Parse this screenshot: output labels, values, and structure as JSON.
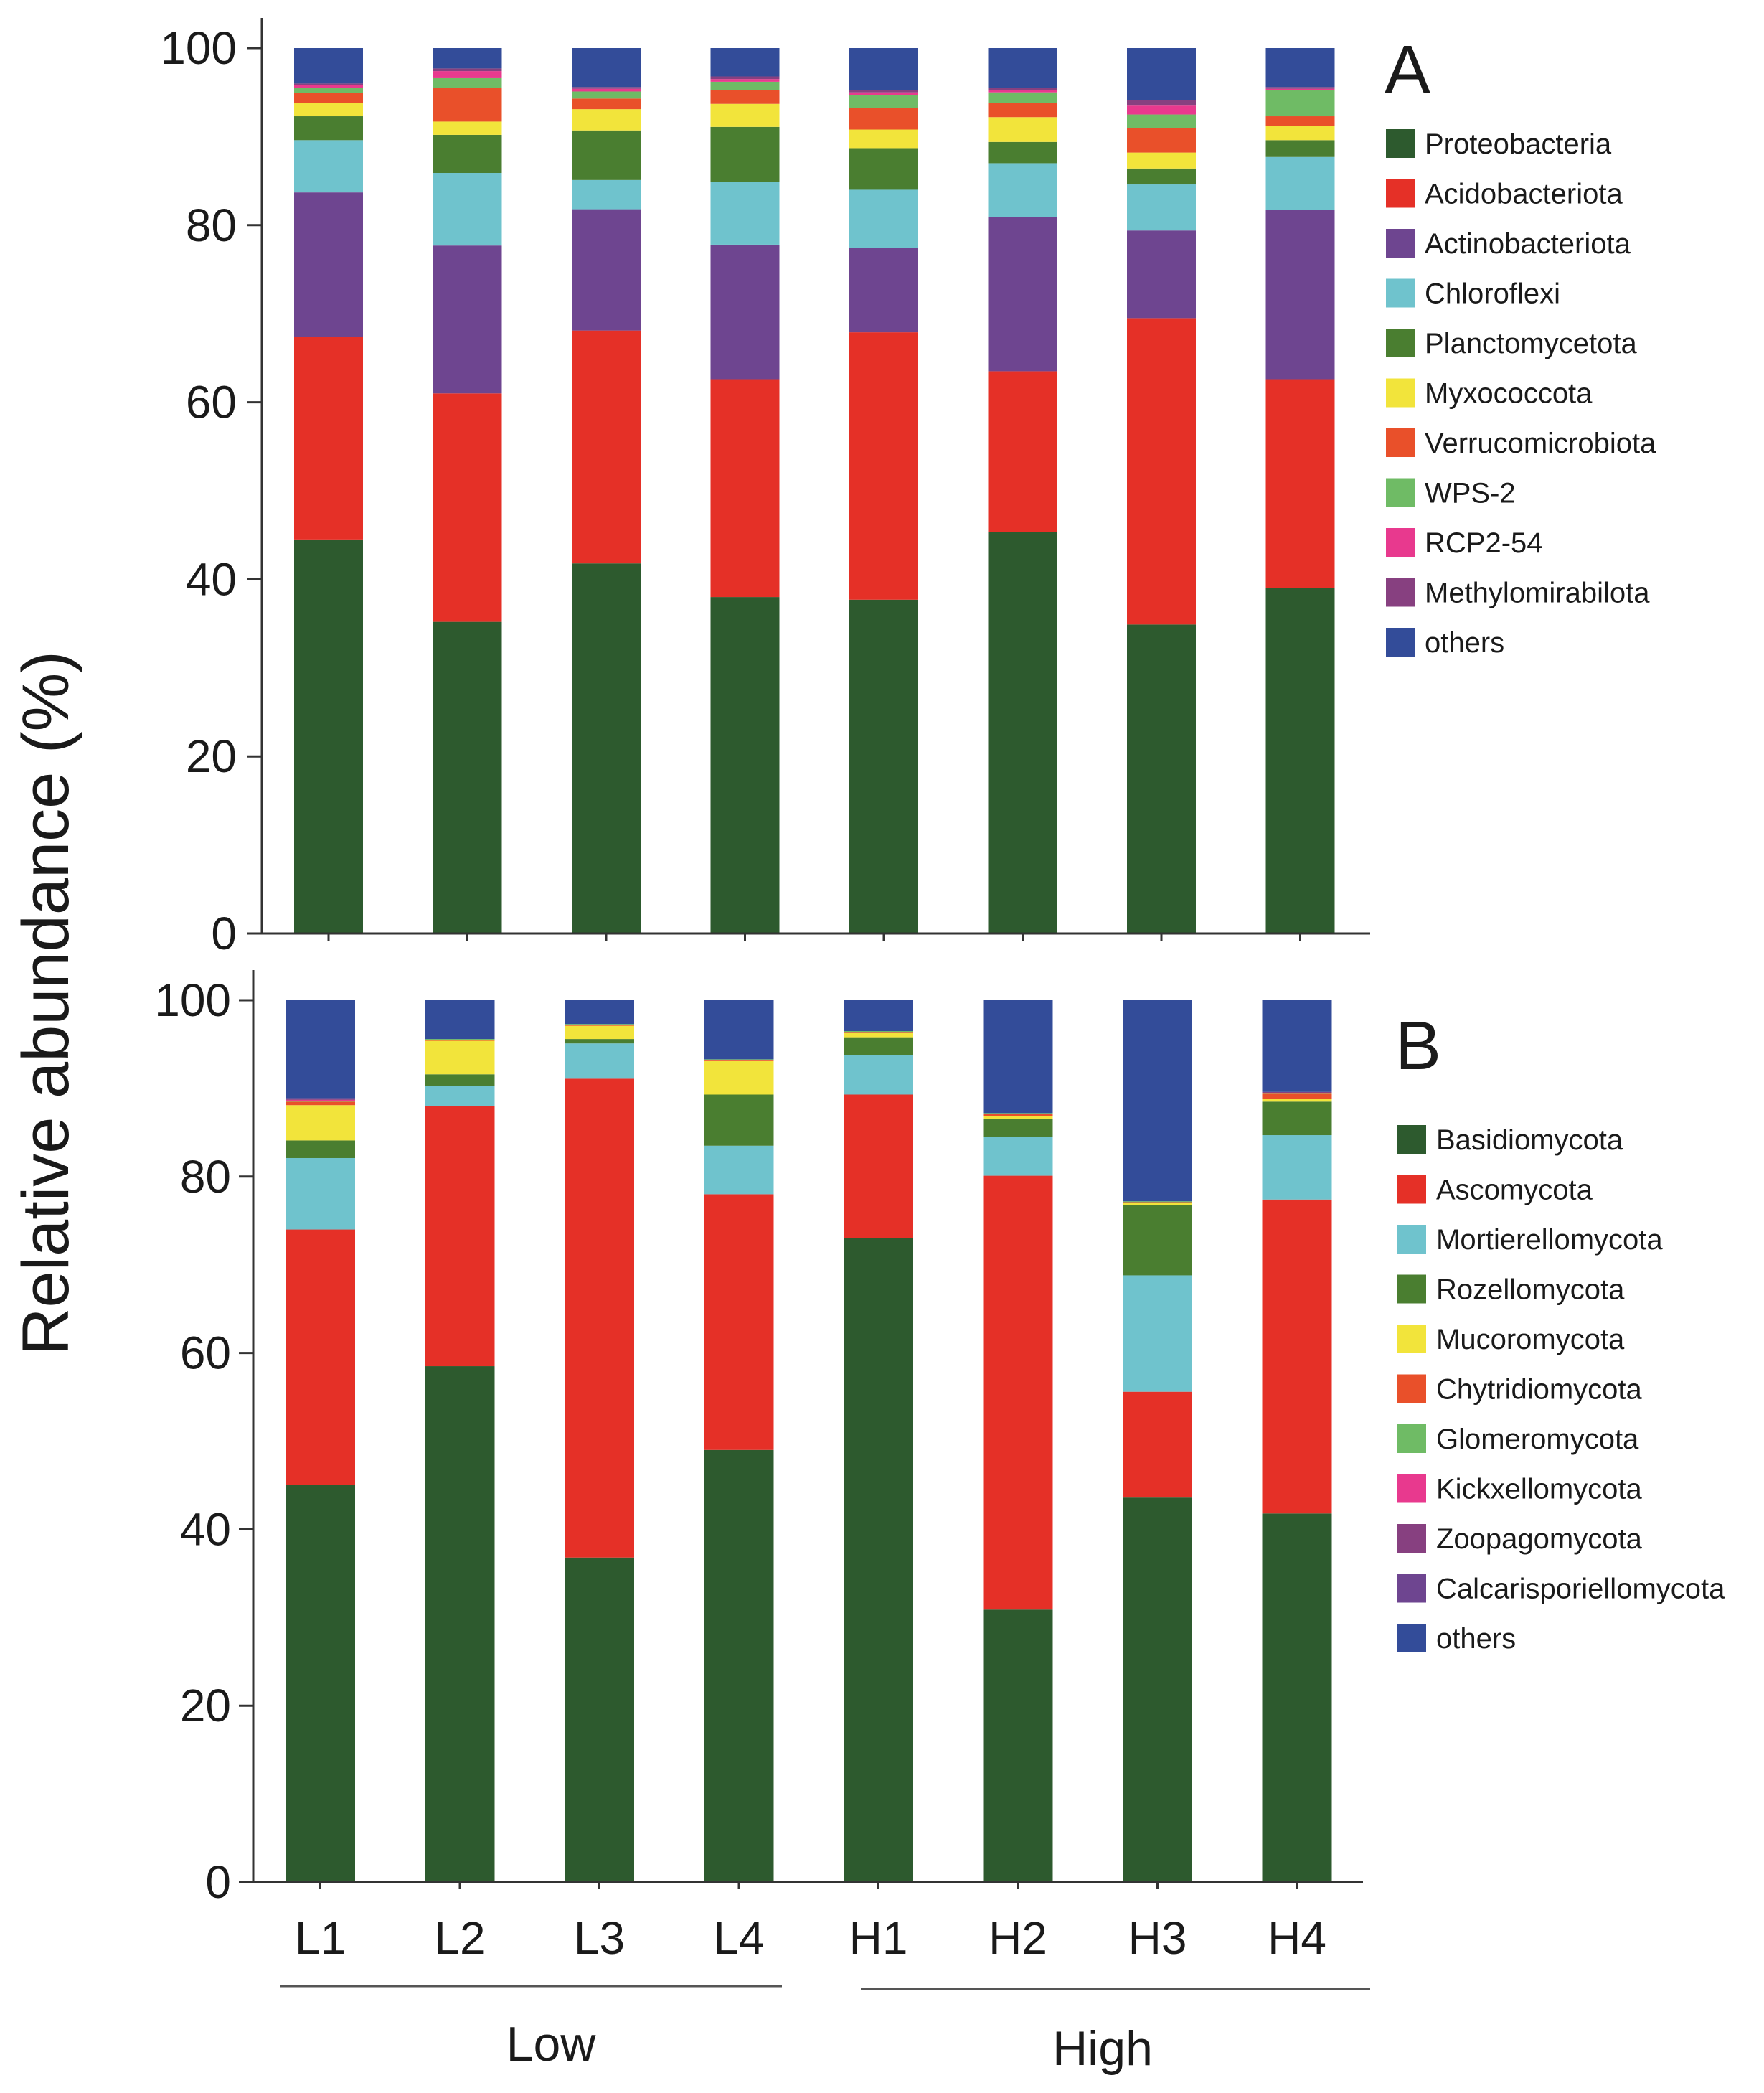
{
  "chart_data": {
    "type": "bar",
    "stacked": true,
    "ylabel": "Relative abundance (%)",
    "ylim": [
      0,
      100
    ],
    "yticks": [
      0,
      20,
      40,
      60,
      80,
      100
    ],
    "categories": [
      "L1",
      "L2",
      "L3",
      "L4",
      "H1",
      "H2",
      "H3",
      "H4"
    ],
    "groups": [
      {
        "label": "Low",
        "members": [
          "L1",
          "L2",
          "L3",
          "L4"
        ]
      },
      {
        "label": "High",
        "members": [
          "H1",
          "H2",
          "H3",
          "H4"
        ]
      }
    ],
    "panels": [
      {
        "label": "A",
        "series": [
          {
            "name": "Proteobacteria",
            "color": "#2d5a2e",
            "values": [
              44.5,
              35.2,
              41.8,
              38.0,
              37.7,
              45.3,
              34.9,
              39.0
            ]
          },
          {
            "name": "Acidobacteriota",
            "color": "#e53027",
            "values": [
              22.9,
              25.8,
              26.3,
              24.6,
              30.2,
              18.2,
              34.6,
              23.6
            ]
          },
          {
            "name": "Actinobacteriota",
            "color": "#6e4590",
            "values": [
              16.3,
              16.7,
              13.7,
              15.2,
              9.5,
              17.4,
              9.9,
              19.1
            ]
          },
          {
            "name": "Chloroflexi",
            "color": "#6fc3cd",
            "values": [
              5.9,
              8.2,
              3.3,
              7.1,
              6.6,
              6.1,
              5.2,
              6.0
            ]
          },
          {
            "name": "Planctomycetota",
            "color": "#4a7e30",
            "values": [
              2.7,
              4.3,
              5.6,
              6.2,
              4.7,
              2.4,
              1.8,
              1.9
            ]
          },
          {
            "name": "Myxococcota",
            "color": "#f2e43b",
            "values": [
              1.5,
              1.5,
              2.4,
              2.6,
              2.1,
              2.8,
              1.8,
              1.6
            ]
          },
          {
            "name": "Verrucomicrobiota",
            "color": "#e9502a",
            "values": [
              1.1,
              3.8,
              1.2,
              1.6,
              2.4,
              1.6,
              2.8,
              1.1
            ]
          },
          {
            "name": "WPS-2",
            "color": "#6fbb65",
            "values": [
              0.6,
              1.1,
              0.8,
              0.9,
              1.5,
              1.2,
              1.5,
              3.0
            ]
          },
          {
            "name": "RCP2-54",
            "color": "#e8398e",
            "values": [
              0.3,
              0.8,
              0.3,
              0.3,
              0.3,
              0.3,
              1.0,
              0.1
            ]
          },
          {
            "name": "Methylomirabilota",
            "color": "#874080",
            "values": [
              0.2,
              0.3,
              0.2,
              0.3,
              0.3,
              0.2,
              0.6,
              0.2
            ]
          },
          {
            "name": "others",
            "color": "#334c99",
            "values": [
              4.0,
              2.3,
              4.4,
              3.2,
              4.7,
              4.5,
              5.9,
              4.4
            ]
          }
        ]
      },
      {
        "label": "B",
        "series": [
          {
            "name": "Basidiomycota",
            "color": "#2d5a2e",
            "values": [
              45.0,
              58.5,
              36.8,
              49.0,
              73.0,
              30.9,
              43.6,
              41.8
            ]
          },
          {
            "name": "Ascomycota",
            "color": "#e53027",
            "values": [
              29.0,
              29.5,
              54.3,
              29.0,
              16.3,
              49.2,
              12.0,
              35.6
            ]
          },
          {
            "name": "Mortierellomycota",
            "color": "#6fc3cd",
            "values": [
              8.1,
              2.3,
              4.0,
              5.5,
              4.5,
              4.4,
              13.2,
              7.3
            ]
          },
          {
            "name": "Rozellomycota",
            "color": "#4a7e30",
            "values": [
              2.0,
              1.3,
              0.5,
              5.8,
              2.0,
              2.0,
              8.0,
              3.8
            ]
          },
          {
            "name": "Mucoromycota",
            "color": "#f2e43b",
            "values": [
              4.0,
              3.8,
              1.5,
              3.8,
              0.5,
              0.4,
              0.2,
              0.3
            ]
          },
          {
            "name": "Chytridiomycota",
            "color": "#e9502a",
            "values": [
              0.4,
              0.1,
              0.1,
              0.1,
              0.1,
              0.2,
              0.1,
              0.6
            ]
          },
          {
            "name": "Glomeromycota",
            "color": "#6fbb65",
            "values": [
              0.1,
              0.1,
              0.1,
              0.1,
              0.1,
              0.1,
              0.1,
              0.1
            ]
          },
          {
            "name": "Kickxellomycota",
            "color": "#e8398e",
            "values": [
              0.1,
              0.0,
              0.0,
              0.0,
              0.0,
              0.0,
              0.0,
              0.0
            ]
          },
          {
            "name": "Zoopagomycota",
            "color": "#874080",
            "values": [
              0.1,
              0.0,
              0.0,
              0.0,
              0.0,
              0.0,
              0.0,
              0.1
            ]
          },
          {
            "name": "Calcarisporiellomycota",
            "color": "#6e4590",
            "values": [
              0.1,
              0.0,
              0.0,
              0.0,
              0.0,
              0.0,
              0.0,
              0.0
            ]
          },
          {
            "name": "others",
            "color": "#334c99",
            "values": [
              11.1,
              4.4,
              2.7,
              6.7,
              3.5,
              12.8,
              22.8,
              10.4
            ]
          }
        ]
      }
    ]
  }
}
